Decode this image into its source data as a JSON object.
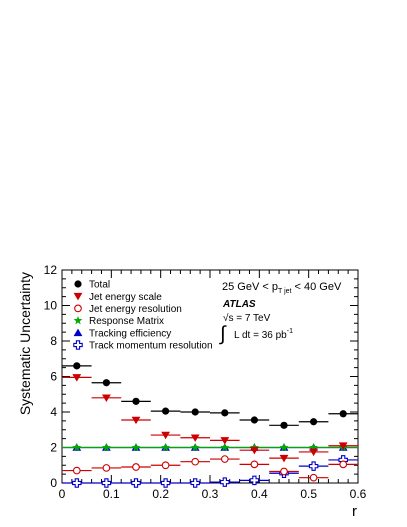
{
  "chart_data": {
    "type": "scatter",
    "xlabel": "r",
    "ylabel": "Systematic Uncertainty",
    "xlim": [
      0,
      0.6
    ],
    "ylim": [
      0,
      12
    ],
    "x_ticks": [
      0,
      0.1,
      0.2,
      0.3,
      0.4,
      0.5,
      0.6
    ],
    "y_ticks": [
      0,
      2,
      4,
      6,
      8,
      10,
      12
    ],
    "x_tick_labels": [
      "0",
      "0.1",
      "0.2",
      "0.3",
      "0.4",
      "0.5",
      "0.6"
    ],
    "y_tick_labels": [
      "0",
      "2",
      "4",
      "6",
      "8",
      "10",
      "12"
    ],
    "bin_edges": [
      0,
      0.06,
      0.12,
      0.18,
      0.24,
      0.3,
      0.36,
      0.42,
      0.48,
      0.54,
      0.6
    ],
    "bin_centers": [
      0.03,
      0.09,
      0.15,
      0.21,
      0.27,
      0.33,
      0.39,
      0.45,
      0.51,
      0.57
    ],
    "legend_position": "top-left",
    "annotations": {
      "pt_range": {
        "pre": "25 GeV < p",
        "sub": "T jet",
        "post": " < 40 GeV"
      },
      "experiment": "ATLAS",
      "energy": {
        "radical": "√",
        "text": "s = 7 TeV"
      },
      "luminosity": {
        "integral": "∫",
        "pre": "L dt = 36 pb",
        "sup": "-1"
      }
    },
    "series": [
      {
        "name": "Total",
        "marker": "circle-filled",
        "color": "#000000",
        "values": [
          6.6,
          5.65,
          4.6,
          4.05,
          4.0,
          3.95,
          3.55,
          3.25,
          3.45,
          3.9
        ]
      },
      {
        "name": "Jet energy scale",
        "marker": "triangle-down-filled",
        "color": "#cc0000",
        "values": [
          5.95,
          4.8,
          3.55,
          2.7,
          2.55,
          2.4,
          1.85,
          1.4,
          1.75,
          2.1
        ]
      },
      {
        "name": "Jet energy resolution",
        "marker": "circle-open",
        "color": "#cc0000",
        "values": [
          0.7,
          0.85,
          0.9,
          1.0,
          1.2,
          1.35,
          1.05,
          0.65,
          0.3,
          1.05
        ]
      },
      {
        "name": "Response Matrix",
        "marker": "star-filled",
        "color": "#00aa00",
        "values": [
          2.0,
          2.0,
          2.0,
          2.0,
          2.0,
          2.0,
          2.0,
          2.0,
          2.0,
          2.0
        ]
      },
      {
        "name": "Tracking efficiency",
        "marker": "triangle-up-filled",
        "color": "#0000cc",
        "values": [
          2.0,
          2.0,
          2.0,
          2.0,
          2.0,
          2.0,
          2.0,
          2.0,
          2.0,
          2.0
        ]
      },
      {
        "name": "Track momentum resolution",
        "marker": "cross-open",
        "color": "#0000cc",
        "values": [
          0.0,
          0.0,
          0.0,
          0.0,
          0.0,
          0.05,
          0.15,
          0.55,
          0.95,
          1.3
        ]
      }
    ]
  }
}
